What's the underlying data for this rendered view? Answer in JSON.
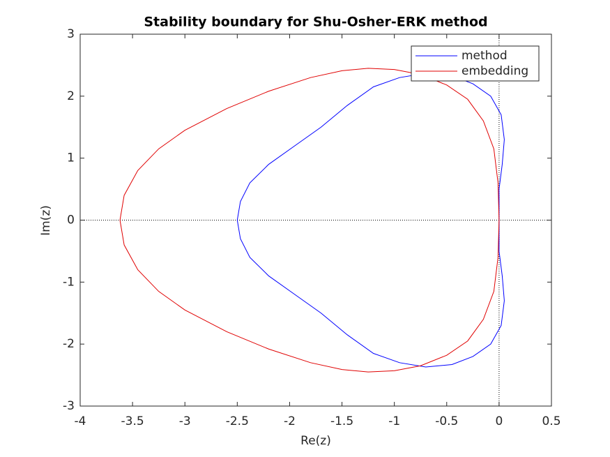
{
  "chart_data": {
    "type": "line",
    "title": "Stability boundary for Shu-Osher-ERK method",
    "x_label": "Re(z)",
    "y_label": "Im(z)",
    "xlim": [
      -4,
      0.5
    ],
    "xticks": [
      -4,
      -3.5,
      -3,
      -2.5,
      -2,
      -1.5,
      -1,
      -0.5,
      0,
      0.5
    ],
    "ylim": [
      -3,
      3
    ],
    "yticks": [
      -3,
      -2,
      -1,
      0,
      1,
      2,
      3
    ],
    "zero_lines": true,
    "grid": false,
    "legend": "upper right",
    "series": [
      {
        "name": "method",
        "color": "#0000ff",
        "x": [
          -2.5,
          -2.47,
          -2.38,
          -2.2,
          -1.95,
          -1.7,
          -1.45,
          -1.2,
          -0.95,
          -0.7,
          -0.45,
          -0.25,
          -0.08,
          0.02,
          0.05,
          0.03,
          0,
          0,
          0,
          0.03,
          0.05,
          0.02,
          -0.08,
          -0.25,
          -0.45,
          -0.7,
          -0.95,
          -1.2,
          -1.45,
          -1.7,
          -1.95,
          -2.2,
          -2.38,
          -2.47,
          -2.5
        ],
        "values": [
          0,
          0.3,
          0.6,
          0.9,
          1.2,
          1.5,
          1.85,
          2.15,
          2.3,
          2.37,
          2.33,
          2.2,
          2.0,
          1.7,
          1.3,
          0.9,
          0.5,
          0,
          -0.5,
          -0.9,
          -1.3,
          -1.7,
          -2.0,
          -2.2,
          -2.33,
          -2.37,
          -2.3,
          -2.15,
          -1.85,
          -1.5,
          -1.2,
          -0.9,
          -0.6,
          -0.3,
          0
        ]
      },
      {
        "name": "embedding",
        "color": "#e00000",
        "x": [
          -3.62,
          -3.58,
          -3.45,
          -3.25,
          -3.0,
          -2.6,
          -2.2,
          -1.8,
          -1.5,
          -1.25,
          -1.0,
          -0.75,
          -0.5,
          -0.3,
          -0.15,
          -0.05,
          -0.01,
          0,
          -0.01,
          -0.05,
          -0.15,
          -0.3,
          -0.5,
          -0.75,
          -1.0,
          -1.25,
          -1.5,
          -1.8,
          -2.2,
          -2.6,
          -3.0,
          -3.25,
          -3.45,
          -3.58,
          -3.62
        ],
        "values": [
          0,
          0.4,
          0.8,
          1.15,
          1.45,
          1.8,
          2.08,
          2.3,
          2.41,
          2.45,
          2.43,
          2.35,
          2.18,
          1.95,
          1.6,
          1.15,
          0.6,
          0,
          -0.6,
          -1.15,
          -1.6,
          -1.95,
          -2.18,
          -2.35,
          -2.43,
          -2.45,
          -2.41,
          -2.3,
          -2.08,
          -1.8,
          -1.45,
          -1.15,
          -0.8,
          -0.4,
          0
        ]
      }
    ]
  }
}
